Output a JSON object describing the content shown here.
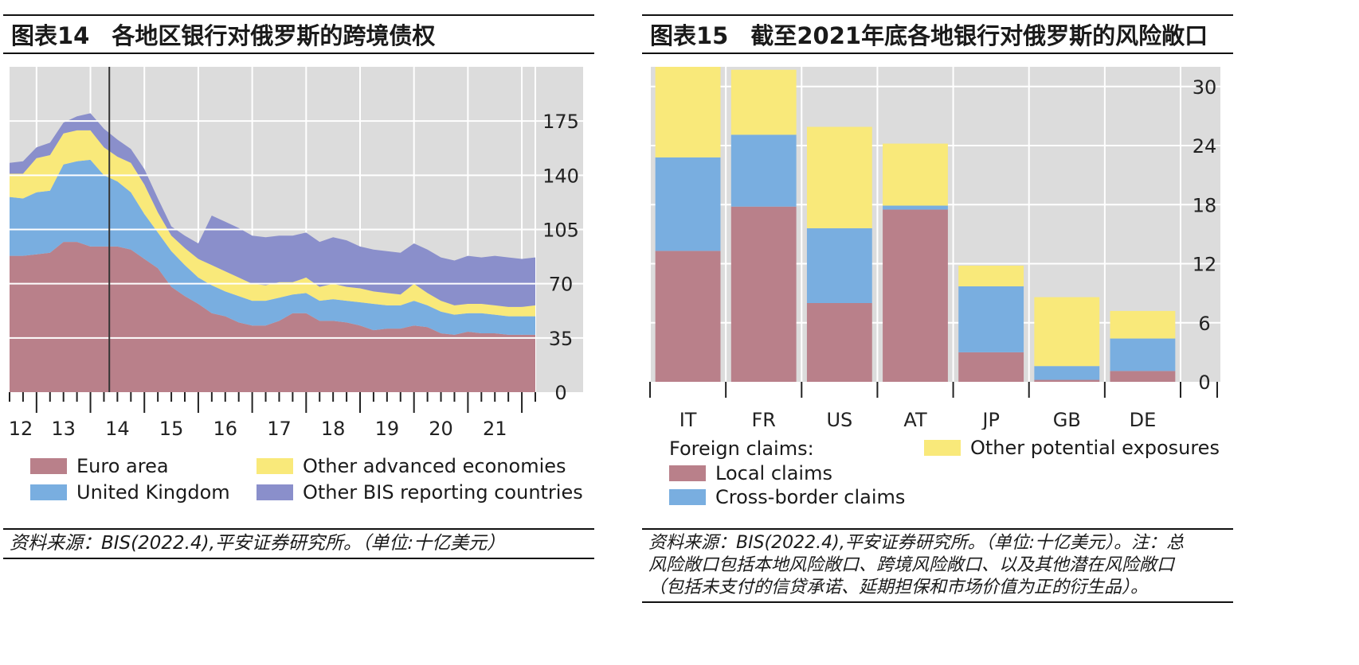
{
  "left": {
    "title_label": "图表14",
    "title": "各地区银行对俄罗斯的跨境债权",
    "source": "资料来源：BIS(2022.4),平安证券研究所。（单位:十亿美元）",
    "legend": [
      {
        "label": "Euro area",
        "color": "#b9808a"
      },
      {
        "label": "Other advanced economies",
        "color": "#f9e97a"
      },
      {
        "label": "United Kingdom",
        "color": "#79aee0"
      },
      {
        "label": "Other BIS reporting countries",
        "color": "#8a8fcb"
      }
    ]
  },
  "right": {
    "title_label": "图表15",
    "title": "截至2021年底各地银行对俄罗斯的风险敞口",
    "source_lines": [
      "资料来源：BIS(2022.4),平安证券研究所。（单位:十亿美元）。注：总",
      "风险敞口包括本地风险敞口、跨境风险敞口、以及其他潜在风险敞口",
      "（包括未支付的信贷承诺、延期担保和市场价值为正的衍生品）。"
    ],
    "legend_heading": "Foreign claims:",
    "legend": [
      {
        "label": "Local claims",
        "color": "#b9808a"
      },
      {
        "label": "Cross-border claims",
        "color": "#79aee0"
      },
      {
        "label": "Other potential exposures",
        "color": "#f9e97a"
      }
    ]
  },
  "chart_data": [
    {
      "type": "area",
      "stacked": true,
      "x_tick_labels": [
        "12",
        "13",
        "14",
        "15",
        "16",
        "17",
        "18",
        "19",
        "20",
        "21"
      ],
      "ylim": [
        0,
        210
      ],
      "y_ticks": [
        0,
        35,
        70,
        105,
        140,
        175
      ],
      "y_axis_side": "right",
      "grid": true,
      "legend_position": "bottom",
      "annotation": "vertical line at early 2014",
      "x": [
        2012.0,
        2012.25,
        2012.5,
        2012.75,
        2013.0,
        2013.25,
        2013.5,
        2013.75,
        2014.0,
        2014.25,
        2014.5,
        2014.75,
        2015.0,
        2015.25,
        2015.5,
        2015.75,
        2016.0,
        2016.25,
        2016.5,
        2016.75,
        2017.0,
        2017.25,
        2017.5,
        2017.75,
        2018.0,
        2018.25,
        2018.5,
        2018.75,
        2019.0,
        2019.25,
        2019.5,
        2019.75,
        2020.0,
        2020.25,
        2020.5,
        2020.75,
        2021.0,
        2021.25,
        2021.5,
        2021.75
      ],
      "series": [
        {
          "name": "Euro area",
          "values": [
            88,
            88,
            89,
            90,
            97,
            97,
            94,
            94,
            94,
            92,
            86,
            80,
            68,
            62,
            57,
            51,
            49,
            45,
            43,
            43,
            46,
            51,
            51,
            46,
            46,
            45,
            43,
            40,
            41,
            41,
            43,
            42,
            38,
            37,
            39,
            38,
            38,
            37,
            37,
            37
          ]
        },
        {
          "name": "United Kingdom",
          "values": [
            38,
            37,
            40,
            40,
            50,
            52,
            56,
            46,
            42,
            37,
            29,
            23,
            23,
            20,
            17,
            18,
            16,
            17,
            16,
            16,
            15,
            12,
            13,
            13,
            14,
            14,
            15,
            17,
            15,
            15,
            16,
            14,
            14,
            13,
            12,
            13,
            12,
            12,
            12,
            12
          ]
        },
        {
          "name": "Other advanced economies",
          "values": [
            15,
            16,
            22,
            23,
            20,
            20,
            19,
            18,
            16,
            19,
            19,
            13,
            10,
            11,
            12,
            13,
            13,
            12,
            11,
            10,
            10,
            8,
            10,
            9,
            10,
            9,
            9,
            8,
            8,
            7,
            11,
            8,
            7,
            6,
            6,
            6,
            6,
            6,
            6,
            7
          ]
        },
        {
          "name": "Other BIS reporting countries",
          "values": [
            7,
            8,
            7,
            8,
            7,
            9,
            11,
            12,
            11,
            9,
            10,
            9,
            6,
            8,
            10,
            32,
            32,
            32,
            31,
            31,
            30,
            30,
            29,
            29,
            30,
            30,
            27,
            27,
            27,
            27,
            26,
            28,
            28,
            29,
            31,
            30,
            32,
            32,
            31,
            31
          ]
        }
      ]
    },
    {
      "type": "bar",
      "stacked": true,
      "categories": [
        "IT",
        "FR",
        "US",
        "AT",
        "JP",
        "GB",
        "DE"
      ],
      "ylim": [
        0,
        32
      ],
      "y_ticks": [
        0,
        6,
        12,
        18,
        24,
        30
      ],
      "y_tick_labels": [
        "0",
        "6",
        "12",
        "18",
        "24",
        "30"
      ],
      "y_axis_side": "right",
      "grid": true,
      "legend_position": "bottom",
      "series": [
        {
          "name": "Local claims",
          "values": [
            13.3,
            17.8,
            8.0,
            17.5,
            3.0,
            0.2,
            1.1
          ]
        },
        {
          "name": "Cross-border claims",
          "values": [
            9.5,
            7.3,
            7.6,
            0.4,
            6.7,
            1.4,
            3.3
          ]
        },
        {
          "name": "Other potential exposures",
          "values": [
            9.2,
            6.6,
            10.3,
            6.3,
            2.1,
            7.0,
            2.8
          ]
        }
      ]
    }
  ]
}
